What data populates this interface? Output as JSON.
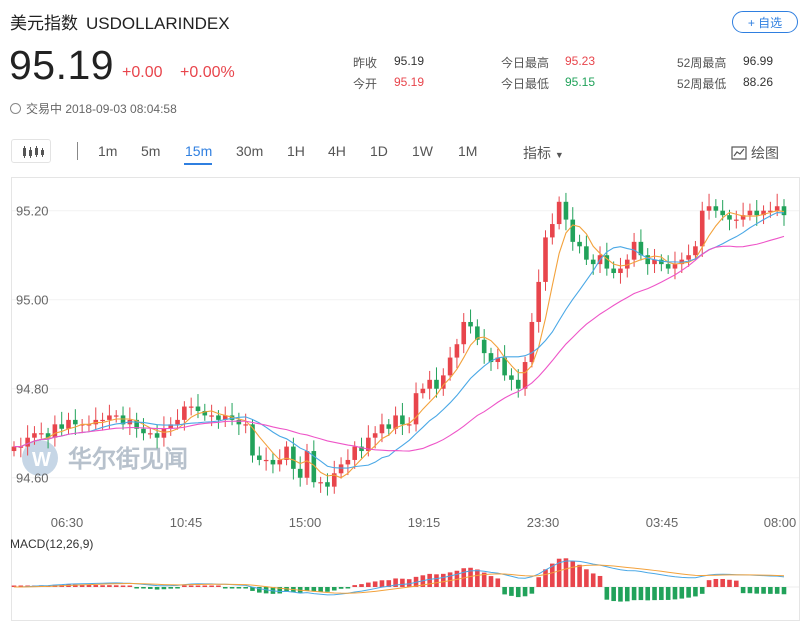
{
  "header": {
    "name": "美元指数",
    "symbol": "USDOLLARINDEX",
    "add_button": "+ 自选"
  },
  "quote": {
    "price": "95.19",
    "change": "+0.00",
    "change_pct": "+0.00%",
    "stats": [
      {
        "label": "昨收",
        "value": "95.19",
        "color": "#333333"
      },
      {
        "label": "今开",
        "value": "95.19",
        "color": "#e8454c"
      },
      {
        "label": "今日最高",
        "value": "95.23",
        "color": "#e8454c"
      },
      {
        "label": "今日最低",
        "value": "95.15",
        "color": "#21a25a"
      },
      {
        "label": "52周最高",
        "value": "96.99",
        "color": "#333333"
      },
      {
        "label": "52周最低",
        "value": "88.26",
        "color": "#333333"
      }
    ],
    "status_text": "交易中 2018-09-03 08:04:58"
  },
  "toolbar": {
    "periods": [
      "1m",
      "5m",
      "15m",
      "30m",
      "1H",
      "4H",
      "1D",
      "1W",
      "1M"
    ],
    "active_period": "15m",
    "indicator_label": "指标",
    "draw_label": "绘图"
  },
  "watermark": "华尔街见闻",
  "colors": {
    "up": "#e8454c",
    "down": "#21a25a",
    "ma_short": "#f3a23c",
    "ma_mid": "#4aa8e6",
    "ma_long": "#ee55c8",
    "accent": "#2f7fe0"
  },
  "chart_data": {
    "type": "candlestick",
    "y_ticks": [
      "95.20",
      "95.00",
      "94.80",
      "94.60"
    ],
    "y_tick_values": [
      95.2,
      95.0,
      94.8,
      94.6
    ],
    "ylim": [
      94.55,
      95.26
    ],
    "x_ticks": [
      "06:30",
      "10:45",
      "15:00",
      "19:15",
      "23:30",
      "03:45",
      "08:00"
    ],
    "closes": [
      94.67,
      94.67,
      94.69,
      94.7,
      94.7,
      94.69,
      94.72,
      94.71,
      94.73,
      94.72,
      94.72,
      94.72,
      94.73,
      94.73,
      94.74,
      94.74,
      94.72,
      94.73,
      94.71,
      94.7,
      94.7,
      94.69,
      94.71,
      94.72,
      94.73,
      94.76,
      94.76,
      94.75,
      94.74,
      94.74,
      94.73,
      94.74,
      94.73,
      94.72,
      94.72,
      94.65,
      94.64,
      94.64,
      94.63,
      94.64,
      94.67,
      94.62,
      94.6,
      94.66,
      94.59,
      94.59,
      94.58,
      94.61,
      94.63,
      94.64,
      94.67,
      94.66,
      94.69,
      94.7,
      94.72,
      94.71,
      94.74,
      94.72,
      94.72,
      94.79,
      94.8,
      94.82,
      94.8,
      94.83,
      94.87,
      94.9,
      94.95,
      94.94,
      94.91,
      94.88,
      94.86,
      94.87,
      94.83,
      94.82,
      94.8,
      94.86,
      94.95,
      95.04,
      95.14,
      95.17,
      95.22,
      95.18,
      95.13,
      95.12,
      95.09,
      95.08,
      95.1,
      95.07,
      95.06,
      95.07,
      95.09,
      95.13,
      95.1,
      95.08,
      95.09,
      95.08,
      95.07,
      95.08,
      95.09,
      95.1,
      95.12,
      95.2,
      95.21,
      95.2,
      95.19,
      95.18,
      95.18,
      95.19,
      95.2,
      95.19,
      95.2,
      95.2,
      95.21,
      95.19
    ],
    "series_names": [
      "MACD(12,26,9)"
    ]
  }
}
